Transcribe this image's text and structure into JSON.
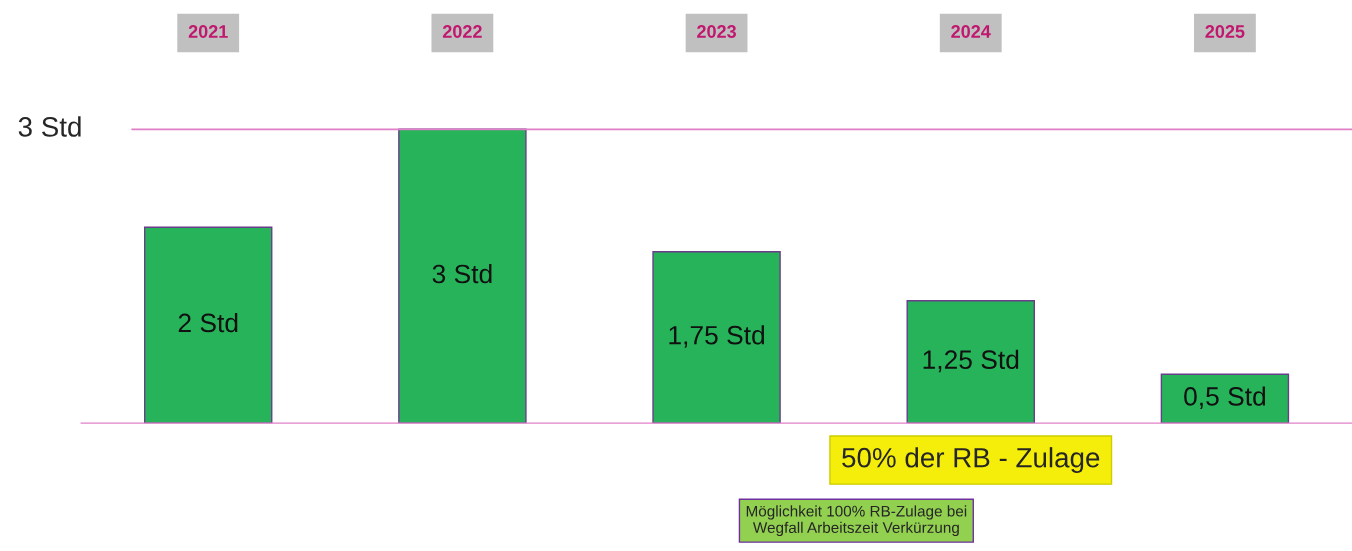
{
  "chart_data": {
    "type": "bar",
    "categories": [
      "2021",
      "2022",
      "2023",
      "2024",
      "2025"
    ],
    "values": [
      2,
      3,
      1.75,
      1.25,
      0.5
    ],
    "value_labels": [
      "2 Std",
      "3 Std",
      "1,75 Std",
      "1,25 Std",
      "0,5 Std"
    ],
    "color": "#27b35a",
    "ref_lines": [
      {
        "axis": "y",
        "value": 3,
        "label": "3 Std",
        "color": "#e080c8"
      }
    ],
    "annotations": [
      "50% der RB - Zulage",
      "Möglichkeit 100% RB-Zulage bei\nWegfall Arbeitszeit Verkürzung"
    ]
  }
}
